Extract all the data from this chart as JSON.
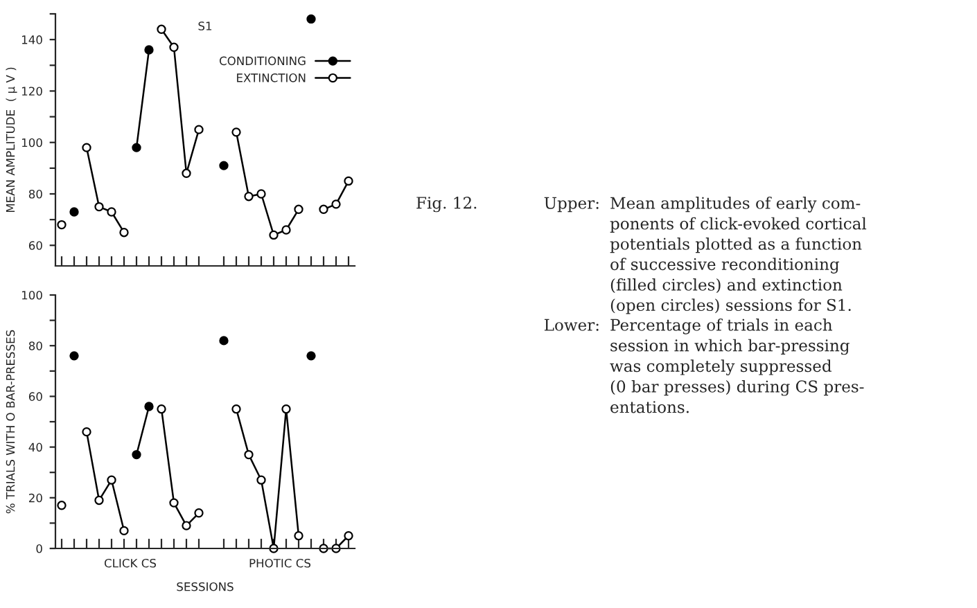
{
  "chart_data": [
    {
      "type": "line",
      "ylabel": "MEAN AMPLITUDE  ( µ V )",
      "categories": [
        null,
        null,
        null,
        null,
        null,
        null,
        null,
        null,
        null,
        null,
        null,
        null,
        null,
        null,
        null,
        null,
        null,
        null,
        null,
        null,
        null,
        null,
        null,
        null
      ],
      "series": [
        {
          "name": "CONDITIONING",
          "color": "#000000",
          "values": [
            null,
            73,
            null,
            null,
            null,
            null,
            98,
            136,
            null,
            null,
            null,
            null,
            null,
            91,
            null,
            null,
            null,
            null,
            null,
            null,
            148,
            null,
            null,
            null
          ]
        },
        {
          "name": "EXTINCTION",
          "color": "#000000",
          "values": [
            68,
            null,
            98,
            75,
            73,
            65,
            null,
            null,
            144,
            137,
            88,
            105,
            null,
            null,
            104,
            79,
            80,
            64,
            66,
            74,
            null,
            74,
            76,
            85
          ]
        }
      ],
      "ylim": [
        52,
        150
      ],
      "yticks": [
        60,
        {
          "value": 70,
          "label": null
        },
        80,
        {
          "value": 90,
          "label": null
        },
        100,
        {
          "value": 110,
          "label": null
        },
        120,
        {
          "value": 130,
          "label": null
        },
        140,
        {
          "value": 150,
          "label": null
        }
      ],
      "marker": "circle",
      "line_style": "solid",
      "legend": "top right",
      "annotations": [
        "S1",
        "Fig. 12.",
        "Upper:",
        "Mean amplitudes of early com-\nponents of click-evoked cortical\npotentials plotted as a function\nof successive reconditioning\n(filled circles) and extinction\n(open circles) sessions for S1.",
        "Lower:",
        "Percentage of trials in each\nsession in which bar-pressing\nwas completely suppressed\n(0 bar presses) during CS pres-\nentations."
      ]
    },
    {
      "type": "line",
      "ylabel": "% TRIALS WITH O BAR-PRESSES",
      "xlabel": "SESSIONS",
      "categories": [
        null,
        null,
        null,
        null,
        null,
        null,
        null,
        null,
        null,
        null,
        null,
        null,
        null,
        null,
        null,
        null,
        null,
        null,
        null,
        null,
        null,
        null,
        null,
        null
      ],
      "series": [
        {
          "color": "#000000",
          "values": [
            null,
            76,
            null,
            null,
            null,
            null,
            37,
            56,
            null,
            null,
            null,
            null,
            null,
            82,
            null,
            null,
            null,
            null,
            null,
            null,
            76,
            null,
            null,
            null
          ]
        },
        {
          "color": "#000000",
          "values": [
            17,
            null,
            46,
            19,
            27,
            7,
            null,
            null,
            55,
            18,
            9,
            14,
            null,
            null,
            55,
            37,
            27,
            0,
            55,
            5,
            null,
            0,
            0,
            5
          ]
        }
      ],
      "ylim": [
        0,
        100
      ],
      "yticks": [
        0,
        {
          "value": 10,
          "label": null
        },
        20,
        {
          "value": 30,
          "label": null
        },
        40,
        {
          "value": 50,
          "label": null
        },
        60,
        {
          "value": 70,
          "label": null
        },
        80,
        {
          "value": 90,
          "label": null
        },
        100
      ],
      "marker": "circle",
      "line_style": "solid",
      "annotations": [
        "CLICK CS",
        "PHOTIC CS"
      ]
    }
  ]
}
